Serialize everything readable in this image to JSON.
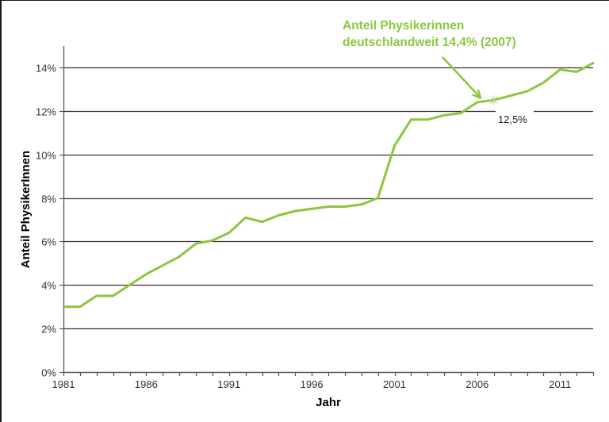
{
  "chart_data": {
    "type": "line",
    "title": "",
    "xlabel": "Jahr",
    "ylabel": "Anteil PhysikerInnen",
    "ylim": [
      0,
      14
    ],
    "xlim": [
      1981,
      2013
    ],
    "grid": true,
    "legend": null,
    "x_tick_labels": [
      "1981",
      "1986",
      "1991",
      "1996",
      "2001",
      "2006",
      "2011"
    ],
    "y_tick_labels": [
      "0%",
      "2%",
      "4%",
      "6%",
      "8%",
      "10%",
      "12%",
      "14%"
    ],
    "x": [
      1981,
      1982,
      1983,
      1984,
      1985,
      1986,
      1987,
      1988,
      1989,
      1990,
      1991,
      1992,
      1993,
      1994,
      1995,
      1996,
      1997,
      1998,
      1999,
      2000,
      2001,
      2002,
      2003,
      2004,
      2005,
      2006,
      2007,
      2008,
      2009,
      2010,
      2011,
      2012,
      2013
    ],
    "series": [
      {
        "name": "Anteil PhysikerInnen",
        "color": "#8cc63f",
        "values": [
          3.0,
          3.0,
          3.5,
          3.5,
          4.0,
          4.5,
          4.9,
          5.3,
          5.9,
          6.05,
          6.4,
          7.1,
          6.9,
          7.2,
          7.4,
          7.5,
          7.6,
          7.6,
          7.7,
          8.0,
          10.4,
          11.6,
          11.6,
          11.8,
          11.9,
          12.4,
          12.5,
          12.7,
          12.9,
          13.3,
          13.9,
          13.8,
          14.2
        ]
      }
    ],
    "annotations": [
      {
        "text_line1": "Anteil Physikerinnen",
        "text_line2": "deutschlandweit 14,4% (2007)",
        "color": "#8cc63f",
        "arrow_to": {
          "x": 2006.2,
          "y": 12.6
        }
      },
      {
        "text": "12,5%",
        "marker": "asterisk",
        "at": {
          "x": 2007,
          "y": 12.5
        }
      }
    ]
  },
  "colors": {
    "line": "#8cc63f",
    "grid": "#333333",
    "axis": "#555555",
    "text": "#333333"
  }
}
